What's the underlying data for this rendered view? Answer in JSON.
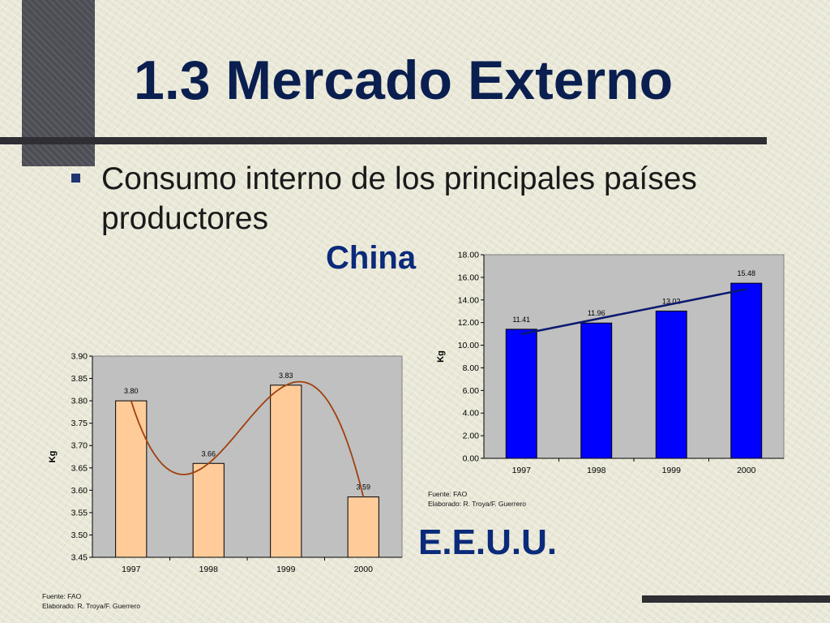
{
  "slide": {
    "title": "1.3 Mercado Externo",
    "bullet": "Consumo interno de los principales países productores",
    "label_china": "China",
    "label_usa": "E.E.U.U."
  },
  "chart_data": [
    {
      "type": "bar",
      "categories": [
        "1997",
        "1998",
        "1999",
        "2000"
      ],
      "values": [
        3.8,
        3.66,
        3.835,
        3.585
      ],
      "data_labels": [
        "3.80",
        "3.66",
        "3.83",
        "3.59"
      ],
      "ylabel": "Kg",
      "ylim": [
        3.45,
        3.9
      ],
      "yticks": [
        "3.45",
        "3.50",
        "3.55",
        "3.60",
        "3.65",
        "3.70",
        "3.75",
        "3.80",
        "3.85",
        "3.90"
      ],
      "trendline": "polynomial",
      "grid": false,
      "source": "Fuente: FAO",
      "author": "Elaborado: R. Troya/F. Guerrero",
      "colors": {
        "bar": "#ffcc99",
        "trend": "#a0400d",
        "plot_bg": "#c0c0c0"
      }
    },
    {
      "type": "bar",
      "categories": [
        "1997",
        "1998",
        "1999",
        "2000"
      ],
      "values": [
        11.41,
        11.96,
        13.02,
        15.48
      ],
      "data_labels": [
        "11.41",
        "11.96",
        "13.02",
        "15.48"
      ],
      "ylabel": "Kg",
      "ylim": [
        0,
        18
      ],
      "yticks": [
        "0.00",
        "2.00",
        "4.00",
        "6.00",
        "8.00",
        "10.00",
        "12.00",
        "14.00",
        "16.00",
        "18.00"
      ],
      "trendline": "linear",
      "grid": false,
      "source": "Fuente: FAO",
      "author": "Elaborado: R. Troya/F. Guerrero",
      "colors": {
        "bar": "#0000ff",
        "trend": "#0a1a6e",
        "plot_bg": "#c0c0c0"
      }
    }
  ]
}
